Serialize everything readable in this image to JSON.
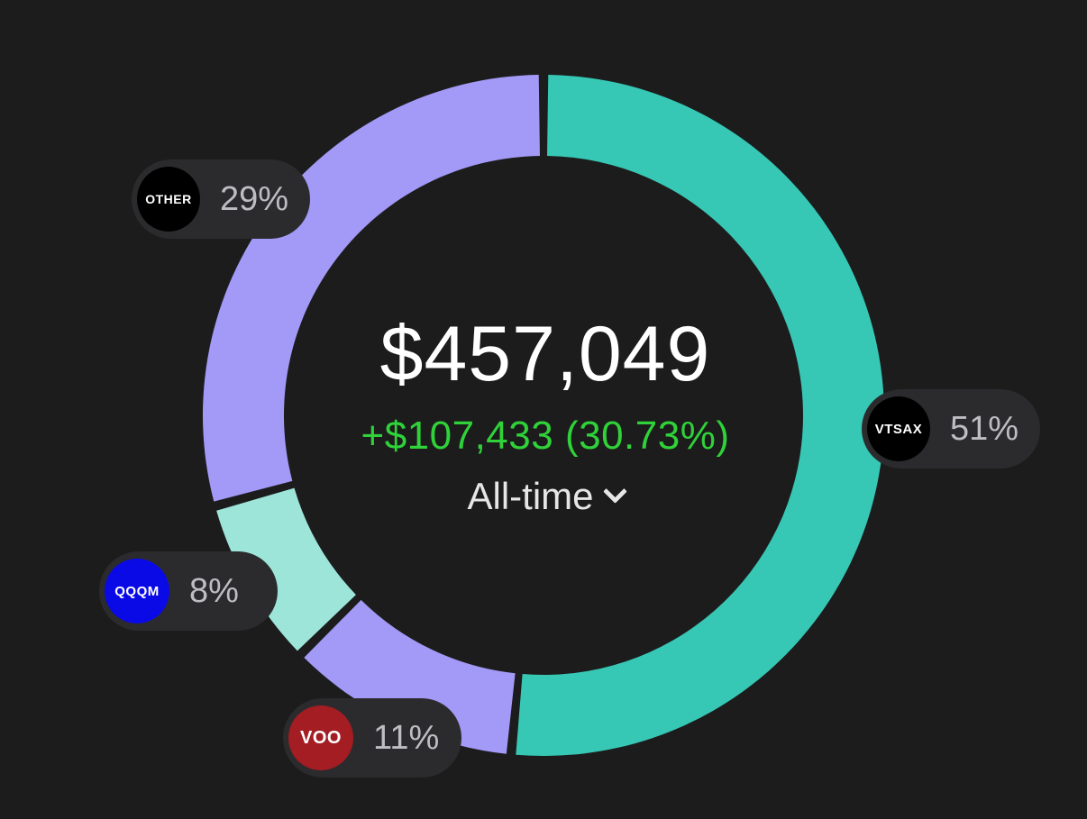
{
  "summary": {
    "total_value": "$457,049",
    "gain_text": "+$107,433 (30.73%)",
    "period_label": "All-time"
  },
  "chart_data": {
    "type": "pie",
    "donut": true,
    "categories": [
      "VTSAX",
      "VOO",
      "QQQM",
      "OTHER"
    ],
    "values": [
      51,
      11,
      8,
      29
    ],
    "labels": [
      "51%",
      "11%",
      "8%",
      "29%"
    ],
    "colors": [
      "#37c8b5",
      "#a39af7",
      "#9de5d8",
      "#a39af7"
    ]
  },
  "holdings": [
    {
      "ticker": "VTSAX",
      "percent_label": "51%",
      "badge_color": "#000000"
    },
    {
      "ticker": "VOO",
      "percent_label": "11%",
      "badge_color": "#a31d23"
    },
    {
      "ticker": "QQQM",
      "percent_label": "8%",
      "badge_color": "#0a0ae6"
    },
    {
      "ticker": "OTHER",
      "percent_label": "29%",
      "badge_color": "#000000"
    }
  ]
}
